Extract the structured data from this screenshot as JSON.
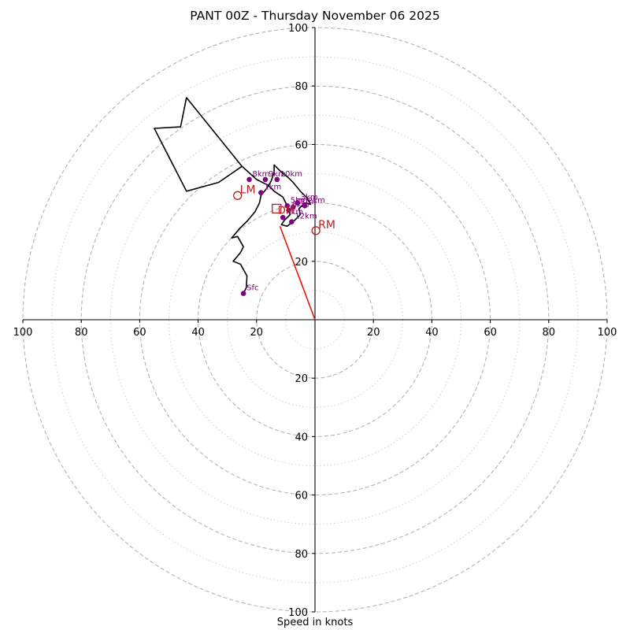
{
  "chart_data": {
    "type": "hodograph",
    "title": "PANT 00Z - Thursday November 06 2025",
    "xlabel": "Speed in knots",
    "units": "knots",
    "axis_range": [
      -100,
      100
    ],
    "ring_speeds_major": [
      20,
      40,
      60,
      80,
      100
    ],
    "ring_speeds_minor": [
      10,
      30,
      50,
      70,
      90
    ],
    "x_ticks": [
      {
        "value": -100,
        "label": "100"
      },
      {
        "value": -80,
        "label": "80"
      },
      {
        "value": -60,
        "label": "60"
      },
      {
        "value": -40,
        "label": "40"
      },
      {
        "value": -20,
        "label": "20"
      },
      {
        "value": 20,
        "label": "20"
      },
      {
        "value": 40,
        "label": "40"
      },
      {
        "value": 60,
        "label": "60"
      },
      {
        "value": 80,
        "label": "80"
      },
      {
        "value": 100,
        "label": "100"
      }
    ],
    "y_ticks": [
      {
        "value": 100,
        "label": "100"
      },
      {
        "value": 80,
        "label": "80"
      },
      {
        "value": 60,
        "label": "60"
      },
      {
        "value": 20,
        "label": "20"
      },
      {
        "value": -20,
        "label": "20"
      },
      {
        "value": -40,
        "label": "40"
      },
      {
        "value": -60,
        "label": "60"
      },
      {
        "value": -80,
        "label": "80"
      },
      {
        "value": -100,
        "label": "100"
      }
    ],
    "wind_trace": [
      [
        -24.5,
        9
      ],
      [
        -23.5,
        11
      ],
      [
        -23.3,
        15
      ],
      [
        -25.5,
        19
      ],
      [
        -28,
        20
      ],
      [
        -25.5,
        23
      ],
      [
        -24.5,
        25
      ],
      [
        -26.5,
        28.5
      ],
      [
        -28.5,
        28
      ],
      [
        -26,
        31
      ],
      [
        -23,
        34
      ],
      [
        -20.5,
        37
      ],
      [
        -19,
        40
      ],
      [
        -18.5,
        42.5
      ],
      [
        -16.5,
        45
      ],
      [
        -15,
        47.5
      ],
      [
        -14,
        50.5
      ],
      [
        -14,
        53
      ],
      [
        -12,
        51
      ],
      [
        -9,
        48.5
      ],
      [
        -7.5,
        47
      ],
      [
        -5,
        44
      ],
      [
        -3,
        42
      ],
      [
        -1.5,
        39.5
      ],
      [
        -3.5,
        40
      ],
      [
        -5.5,
        38
      ],
      [
        -5,
        36
      ],
      [
        -7,
        34
      ],
      [
        -9.5,
        32
      ],
      [
        -11.5,
        32.5
      ],
      [
        -10.5,
        34
      ],
      [
        -8.5,
        36
      ],
      [
        -9,
        38
      ],
      [
        -11,
        42
      ],
      [
        -14,
        44
      ],
      [
        -16,
        46
      ],
      [
        -20,
        48
      ],
      [
        -25,
        52.5
      ],
      [
        -33,
        47
      ],
      [
        -44,
        44
      ],
      [
        -55,
        65.5
      ],
      [
        -46,
        66
      ],
      [
        -44,
        76
      ],
      [
        -25,
        52.5
      ]
    ],
    "height_markers": [
      {
        "label": "Sfc",
        "u": -24.5,
        "v": 9
      },
      {
        "label": "1km",
        "u": -18.5,
        "v": 43.5
      },
      {
        "label": "2km",
        "u": -3.5,
        "v": 39
      },
      {
        "label": "3km",
        "u": -6,
        "v": 40
      },
      {
        "label": "4km",
        "u": -11,
        "v": 35
      },
      {
        "label": "5km",
        "u": -9.5,
        "v": 39
      },
      {
        "label": "6km",
        "u": -9,
        "v": 37.5
      },
      {
        "label": "7km",
        "u": -7.5,
        "v": 38.5
      },
      {
        "label": "8km",
        "u": -22.5,
        "v": 48
      },
      {
        "label": "9km",
        "u": -17,
        "v": 48
      },
      {
        "label": "10km",
        "u": -13,
        "v": 48
      },
      {
        "label": "12km",
        "u": -8,
        "v": 33.5
      }
    ],
    "storm_motion": [
      {
        "label": "RM",
        "u": 0.3,
        "v": 30.5
      },
      {
        "label": "LM",
        "u": -26.5,
        "v": 42.5
      },
      {
        "label": "DM",
        "u": -13,
        "v": 36
      }
    ],
    "shear_vector": {
      "from": [
        0,
        0
      ],
      "to": [
        -12,
        32
      ]
    }
  }
}
